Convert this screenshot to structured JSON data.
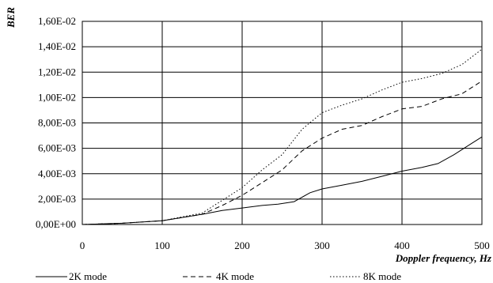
{
  "chart_data": {
    "type": "line",
    "title": "",
    "xlabel": "Doppler frequency, Hz",
    "ylabel": "BER",
    "xlim": [
      0,
      500
    ],
    "ylim": [
      0,
      0.016
    ],
    "x_ticks": [
      "0",
      "100",
      "200",
      "300",
      "400",
      "500"
    ],
    "y_ticks": [
      "0,00E+00",
      "2,00E-03",
      "4,00E-03",
      "6,00E-03",
      "8,00E-03",
      "1,00E-02",
      "1,20E-02",
      "1,40E-02",
      "1,60E-02"
    ],
    "grid": true,
    "legend_position": "bottom",
    "series": [
      {
        "name": "2K mode",
        "line_style": "solid",
        "x": [
          0,
          50,
          100,
          150,
          175,
          200,
          225,
          245,
          265,
          285,
          300,
          325,
          350,
          375,
          400,
          425,
          445,
          465,
          485,
          500
        ],
        "y": [
          0,
          0.0001,
          0.0003,
          0.0008,
          0.0011,
          0.0013,
          0.0015,
          0.0016,
          0.0018,
          0.0025,
          0.0028,
          0.0031,
          0.0034,
          0.0038,
          0.0042,
          0.0045,
          0.0048,
          0.0055,
          0.0063,
          0.0069
        ]
      },
      {
        "name": "4K mode",
        "line_style": "dashed",
        "x": [
          0,
          50,
          100,
          150,
          175,
          200,
          225,
          250,
          275,
          300,
          325,
          350,
          375,
          400,
          425,
          450,
          475,
          500
        ],
        "y": [
          0,
          0.0001,
          0.0003,
          0.0008,
          0.0015,
          0.0023,
          0.0033,
          0.0043,
          0.0058,
          0.0068,
          0.0075,
          0.0078,
          0.0085,
          0.0091,
          0.0093,
          0.0099,
          0.0103,
          0.0113
        ]
      },
      {
        "name": "8K mode",
        "line_style": "dotted",
        "x": [
          0,
          50,
          100,
          150,
          175,
          200,
          225,
          250,
          275,
          300,
          325,
          350,
          375,
          400,
          425,
          450,
          475,
          500
        ],
        "y": [
          0,
          0.0001,
          0.0003,
          0.0009,
          0.0019,
          0.0029,
          0.0043,
          0.0055,
          0.0075,
          0.0088,
          0.0094,
          0.0099,
          0.0106,
          0.0112,
          0.0115,
          0.0119,
          0.0126,
          0.0138
        ]
      }
    ]
  }
}
